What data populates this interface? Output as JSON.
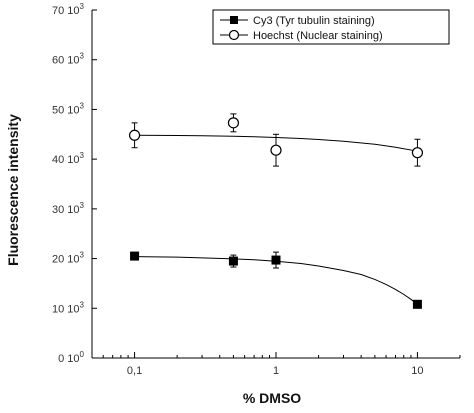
{
  "chart_data": {
    "type": "scatter",
    "xlabel": "% DMSO",
    "ylabel": "Fluorescence intensity",
    "xscale": "log",
    "xlim": [
      0.05,
      20
    ],
    "ylim": [
      0,
      70000
    ],
    "x_ticks": [
      {
        "value": 0.1,
        "label": "0,1"
      },
      {
        "value": 1,
        "label": "1"
      },
      {
        "value": 10,
        "label": "10"
      }
    ],
    "y_ticks": [
      {
        "value": 0,
        "label": "0 10",
        "exp": "0"
      },
      {
        "value": 10000,
        "label": "10 10",
        "exp": "3"
      },
      {
        "value": 20000,
        "label": "20 10",
        "exp": "3"
      },
      {
        "value": 30000,
        "label": "30 10",
        "exp": "3"
      },
      {
        "value": 40000,
        "label": "40 10",
        "exp": "3"
      },
      {
        "value": 50000,
        "label": "50 10",
        "exp": "3"
      },
      {
        "value": 60000,
        "label": "60 10",
        "exp": "3"
      },
      {
        "value": 70000,
        "label": "70 10",
        "exp": "3"
      }
    ],
    "grid": false,
    "legend_position": "top-right",
    "series": [
      {
        "name": "Cy3 (Tyr tubulin staining)",
        "marker": "filled-square",
        "color": "#000000",
        "points": [
          {
            "x": 0.1,
            "y": 20500,
            "err": 600
          },
          {
            "x": 0.5,
            "y": 19500,
            "err": 1200
          },
          {
            "x": 1,
            "y": 19700,
            "err": 1600
          },
          {
            "x": 10,
            "y": 10800,
            "err": 500
          }
        ],
        "fit": [
          {
            "x": 0.1,
            "y": 20400
          },
          {
            "x": 0.2,
            "y": 20300
          },
          {
            "x": 0.3,
            "y": 20150
          },
          {
            "x": 0.5,
            "y": 19950
          },
          {
            "x": 0.7,
            "y": 19750
          },
          {
            "x": 1,
            "y": 19450
          },
          {
            "x": 1.5,
            "y": 19000
          },
          {
            "x": 2,
            "y": 18500
          },
          {
            "x": 3,
            "y": 17600
          },
          {
            "x": 4,
            "y": 16800
          },
          {
            "x": 5,
            "y": 15800
          },
          {
            "x": 6,
            "y": 14800
          },
          {
            "x": 7,
            "y": 13800
          },
          {
            "x": 8,
            "y": 12800
          },
          {
            "x": 9,
            "y": 11800
          },
          {
            "x": 10,
            "y": 10800
          }
        ]
      },
      {
        "name": "Hoechst (Nuclear staining)",
        "marker": "open-circle",
        "color": "#000000",
        "points": [
          {
            "x": 0.1,
            "y": 44800,
            "err": 2500
          },
          {
            "x": 0.5,
            "y": 47300,
            "err": 1800
          },
          {
            "x": 1,
            "y": 41800,
            "err": 3200
          },
          {
            "x": 10,
            "y": 41300,
            "err": 2700
          }
        ],
        "fit": [
          {
            "x": 0.1,
            "y": 44800
          },
          {
            "x": 0.2,
            "y": 44750
          },
          {
            "x": 0.3,
            "y": 44700
          },
          {
            "x": 0.5,
            "y": 44600
          },
          {
            "x": 0.7,
            "y": 44500
          },
          {
            "x": 1,
            "y": 44350
          },
          {
            "x": 1.5,
            "y": 44150
          },
          {
            "x": 2,
            "y": 43950
          },
          {
            "x": 3,
            "y": 43600
          },
          {
            "x": 5,
            "y": 43000
          },
          {
            "x": 7,
            "y": 42400
          },
          {
            "x": 10,
            "y": 41600
          }
        ]
      }
    ]
  }
}
